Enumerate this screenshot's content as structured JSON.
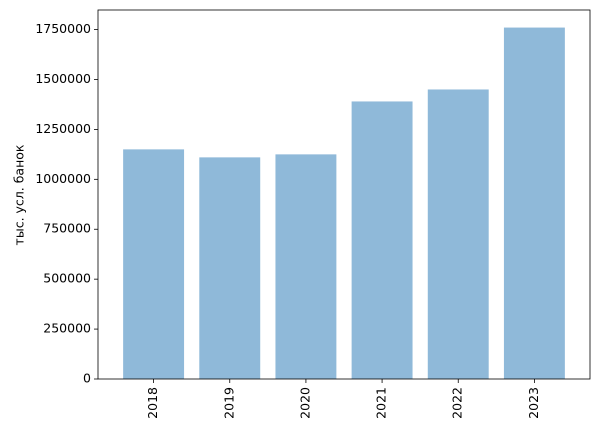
{
  "chart_data": {
    "type": "bar",
    "y_label": "тыс. усл. банок",
    "categories": [
      "2018",
      "2019",
      "2020",
      "2021",
      "2022",
      "2023"
    ],
    "values": [
      1150000,
      1110000,
      1125000,
      1390000,
      1450000,
      1760000
    ],
    "color": "#8fb9d9",
    "ylim": [
      0,
      1848000
    ],
    "yticks": [
      0,
      250000,
      500000,
      750000,
      1000000,
      1250000,
      1500000,
      1750000
    ],
    "grid": false
  }
}
